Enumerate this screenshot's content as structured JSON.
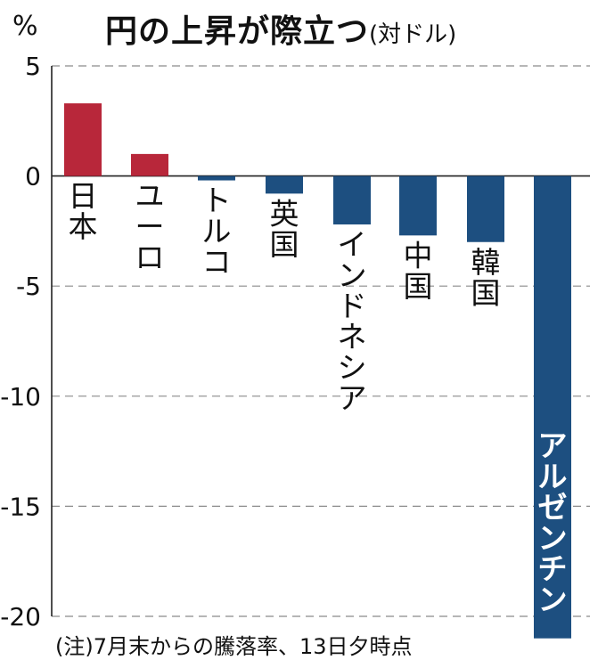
{
  "unit_label": "%",
  "title": "円の上昇が際立つ",
  "title_sub": "(対ドル)",
  "note": "(注)7月末からの騰落率、13日夕時点",
  "colors": {
    "positive": "#b8273a",
    "negative": "#1d4f80",
    "label_on_bar": "#ffffff"
  },
  "chart_data": {
    "type": "bar",
    "orientation": "vertical",
    "categories": [
      "日本",
      "ユーロ",
      "トルコ",
      "英国",
      "インドネシア",
      "中国",
      "韓国",
      "アルゼンチン"
    ],
    "values": [
      3.3,
      1.0,
      -0.2,
      -0.8,
      -2.2,
      -2.7,
      -3.0,
      -21.0
    ],
    "ylim": [
      -20,
      5
    ],
    "yticks": [
      5,
      0,
      -5,
      -10,
      -15,
      -20
    ],
    "ytick_labels": [
      "5",
      "0",
      "-5",
      "-10",
      "-15",
      "-20"
    ],
    "grid": "horizontal-dashed"
  }
}
